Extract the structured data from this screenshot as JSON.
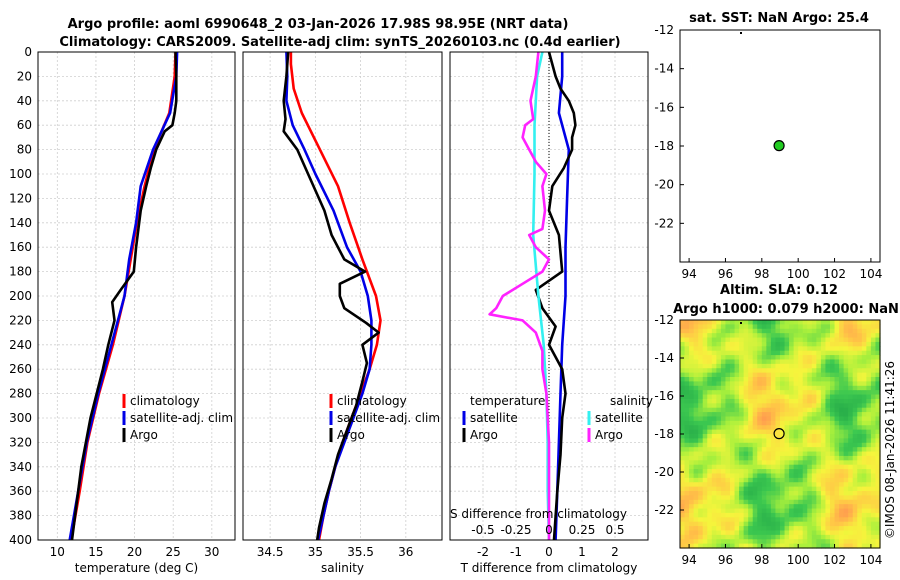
{
  "header": {
    "line1": "Argo profile: aoml 6990648_2 03-Jan-2026 17.98S 98.95E (NRT data)",
    "line2": "Climatology: CARS2009. Satellite-adj clim: synTS_20260103.nc (0.4d earlier)"
  },
  "colors": {
    "climatology": "#ff0000",
    "satellite_adj": "#0000e6",
    "argo": "#000000",
    "satellite_sal": "#33f0f0",
    "argo_sal": "#ff22ff",
    "grid": "#cfcfcf"
  },
  "legend1": {
    "items": [
      "climatology",
      "satellite-adj. clim",
      "Argo"
    ]
  },
  "legend2": {
    "items": [
      "climatology",
      "satellite-adj. clim",
      "Argo"
    ]
  },
  "legend3": {
    "temp_header": "temperature",
    "sal_header": "salinity",
    "temp_items": [
      "satellite",
      "Argo"
    ],
    "sal_items": [
      "satellite",
      "Argo"
    ]
  },
  "panel3": {
    "s_label": "S difference from climatology",
    "s_ticks": [
      "-0.5",
      "-0.25",
      "0",
      "0.25",
      "0.5"
    ]
  },
  "map1": {
    "title": "sat. SST: NaN Argo: 25.4"
  },
  "map2": {
    "title1": "Altim. SLA: 0.12",
    "title2": "Argo h1000: 0.079 h2000: NaN"
  },
  "watermark": "©IMOS 08-Jan-2026 11:41:26",
  "chart_data": [
    {
      "type": "line",
      "name": "temperature-profile",
      "xlabel": "temperature (deg C)",
      "ylabel": "",
      "xlim": [
        7.5,
        33
      ],
      "ylim": [
        0,
        400
      ],
      "y_inverted": true,
      "grid": true,
      "xticks": [
        10,
        15,
        20,
        25,
        30
      ],
      "yticks": [
        0,
        20,
        40,
        60,
        80,
        100,
        120,
        140,
        160,
        180,
        200,
        220,
        240,
        260,
        280,
        300,
        320,
        340,
        360,
        380,
        400
      ],
      "series": [
        {
          "name": "climatology",
          "depth": [
            0,
            20,
            50,
            80,
            110,
            140,
            170,
            200,
            240,
            280,
            320,
            360,
            400
          ],
          "values": [
            25.3,
            25.2,
            24.5,
            22.5,
            21.3,
            20.3,
            19.5,
            18.7,
            17.2,
            15.4,
            13.9,
            12.9,
            11.8
          ]
        },
        {
          "name": "satellite-adj. clim",
          "depth": [
            0,
            20,
            50,
            80,
            110,
            140,
            170,
            200,
            240,
            280,
            320,
            360,
            400
          ],
          "values": [
            25.5,
            25.4,
            24.6,
            22.4,
            20.8,
            20.2,
            19.3,
            18.7,
            17.0,
            15.3,
            13.8,
            12.7,
            11.6
          ]
        },
        {
          "name": "Argo",
          "depth": [
            0,
            20,
            40,
            50,
            60,
            65,
            80,
            95,
            110,
            130,
            160,
            180,
            195,
            205,
            220,
            240,
            260,
            280,
            300,
            320,
            340,
            360,
            380,
            400
          ],
          "values": [
            25.3,
            25.4,
            25.4,
            25.2,
            24.9,
            23.9,
            22.8,
            22.1,
            21.5,
            20.8,
            20.2,
            19.9,
            18.2,
            17.1,
            17.4,
            16.6,
            15.9,
            15.1,
            14.3,
            13.7,
            13.1,
            12.7,
            12.3,
            11.9
          ]
        }
      ]
    },
    {
      "type": "line",
      "name": "salinity-profile",
      "xlabel": "salinity",
      "ylabel": "",
      "xlim": [
        34.2,
        36.4
      ],
      "ylim": [
        0,
        400
      ],
      "y_inverted": true,
      "grid": true,
      "xticks": [
        34.5,
        35,
        35.5,
        36
      ],
      "series": [
        {
          "name": "climatology",
          "depth": [
            0,
            10,
            30,
            50,
            80,
            110,
            140,
            170,
            200,
            220,
            240,
            260,
            280,
            300,
            320,
            340,
            360,
            380,
            400
          ],
          "values": [
            34.73,
            34.73,
            34.76,
            34.85,
            35.05,
            35.25,
            35.38,
            35.52,
            35.67,
            35.72,
            35.68,
            35.6,
            35.5,
            35.4,
            35.3,
            35.22,
            35.15,
            35.09,
            35.04
          ]
        },
        {
          "name": "satellite-adj. clim",
          "depth": [
            0,
            20,
            40,
            60,
            80,
            100,
            130,
            160,
            180,
            200,
            220,
            240,
            260,
            280,
            300,
            320,
            340,
            360,
            380,
            400
          ],
          "values": [
            34.68,
            34.69,
            34.68,
            34.75,
            34.88,
            35.0,
            35.2,
            35.35,
            35.5,
            35.58,
            35.62,
            35.62,
            35.6,
            35.52,
            35.42,
            35.32,
            35.22,
            35.15,
            35.09,
            35.03
          ]
        },
        {
          "name": "Argo",
          "depth": [
            0,
            20,
            40,
            55,
            65,
            80,
            100,
            130,
            150,
            170,
            180,
            190,
            200,
            210,
            222,
            230,
            240,
            255,
            270,
            290,
            310,
            330,
            350,
            370,
            390,
            400
          ],
          "values": [
            34.7,
            34.68,
            34.65,
            34.67,
            34.65,
            34.8,
            34.92,
            35.1,
            35.18,
            35.32,
            35.55,
            35.27,
            35.27,
            35.32,
            35.56,
            35.7,
            35.52,
            35.57,
            35.52,
            35.45,
            35.35,
            35.25,
            35.18,
            35.1,
            35.04,
            35.02
          ]
        }
      ]
    },
    {
      "type": "line",
      "name": "difference-from-climatology",
      "xlabel": "T difference from climatology",
      "ylabel": "",
      "xlim": [
        -3,
        3
      ],
      "ylim": [
        0,
        400
      ],
      "y_inverted": true,
      "grid": true,
      "xticks": [
        -2,
        -1,
        0,
        1,
        2
      ],
      "s_xlim": [
        -0.75,
        0.75
      ],
      "series": [
        {
          "name": "temperature satellite",
          "depth": [
            0,
            20,
            50,
            80,
            120,
            160,
            200,
            240,
            280,
            320,
            360,
            400
          ],
          "values": [
            0.4,
            0.4,
            0.3,
            0.6,
            0.55,
            0.5,
            0.5,
            0.4,
            0.35,
            0.3,
            0.25,
            0.2
          ]
        },
        {
          "name": "temperature Argo",
          "depth": [
            0,
            20,
            30,
            40,
            50,
            60,
            70,
            80,
            95,
            110,
            130,
            150,
            180,
            195,
            210,
            225,
            240,
            260,
            280,
            300,
            330,
            360,
            400
          ],
          "values": [
            0.0,
            0.2,
            0.35,
            0.6,
            0.75,
            0.8,
            0.7,
            0.7,
            0.45,
            0.1,
            0.0,
            0.3,
            0.4,
            -0.4,
            -0.2,
            0.2,
            0.0,
            0.4,
            0.5,
            0.4,
            0.35,
            0.25,
            0.15
          ]
        },
        {
          "name": "salinity satellite",
          "depth": [
            0,
            20,
            40,
            60,
            100,
            150,
            200,
            240,
            280,
            320,
            360,
            400
          ],
          "values": [
            -0.05,
            -0.09,
            -0.1,
            -0.11,
            -0.11,
            -0.12,
            -0.08,
            -0.04,
            -0.02,
            -0.01,
            -0.01,
            0.0
          ]
        },
        {
          "name": "salinity Argo",
          "depth": [
            0,
            20,
            40,
            55,
            60,
            70,
            80,
            90,
            100,
            110,
            130,
            145,
            150,
            160,
            170,
            180,
            190,
            200,
            210,
            215,
            220,
            230,
            245,
            260,
            280,
            300,
            320,
            340,
            360,
            380,
            400
          ],
          "values": [
            -0.08,
            -0.1,
            -0.14,
            -0.12,
            -0.18,
            -0.2,
            -0.15,
            -0.1,
            -0.02,
            -0.05,
            -0.03,
            -0.05,
            -0.15,
            -0.1,
            0.0,
            -0.05,
            -0.2,
            -0.35,
            -0.4,
            -0.45,
            -0.2,
            -0.1,
            -0.05,
            -0.05,
            -0.02,
            -0.01,
            0.0,
            0.0,
            0.0,
            0.0,
            0.0
          ]
        }
      ]
    },
    {
      "type": "scatter",
      "name": "sst-map",
      "title": "sat. SST: NaN Argo: 25.4",
      "xlim": [
        93.5,
        104.5
      ],
      "ylim": [
        -24,
        -12
      ],
      "xticks": [
        94,
        96,
        98,
        100,
        102,
        104
      ],
      "yticks": [
        -12,
        -14,
        -16,
        -18,
        -20,
        -22
      ],
      "points": [
        {
          "x": 98.95,
          "y": -17.98,
          "label": "Argo float"
        }
      ]
    },
    {
      "type": "heatmap",
      "name": "sla-map",
      "title": "Altim. SLA: 0.12 / Argo h1000: 0.079 h2000: NaN",
      "xlim": [
        93.5,
        104.5
      ],
      "ylim": [
        -24,
        -12
      ],
      "xticks": [
        94,
        96,
        98,
        100,
        102,
        104
      ],
      "yticks": [
        -12,
        -14,
        -16,
        -18,
        -20,
        -22
      ],
      "points": [
        {
          "x": 98.95,
          "y": -17.98,
          "label": "Argo float"
        }
      ]
    }
  ]
}
